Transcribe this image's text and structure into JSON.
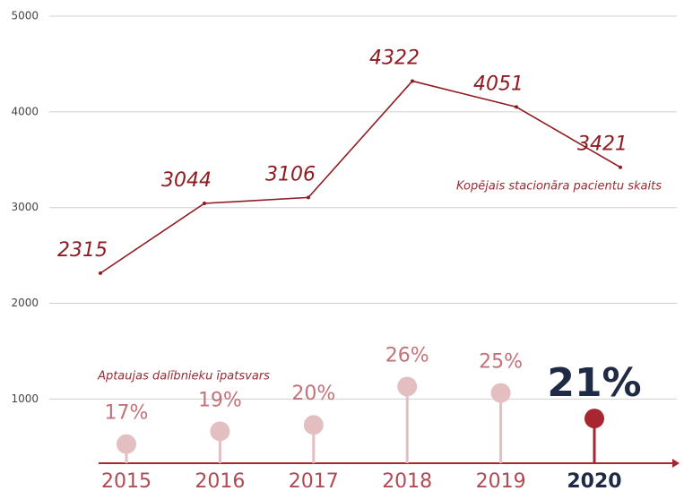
{
  "chart_data": {
    "type": "line",
    "categories": [
      "2015",
      "2016",
      "2017",
      "2018",
      "2019",
      "2020"
    ],
    "category_colors": [
      "#b04a55",
      "#b04a55",
      "#b04a55",
      "#b04a55",
      "#b04a55",
      "#1f2a44"
    ],
    "ylim": [
      330,
      5000
    ],
    "yticks": [
      1000,
      2000,
      3000,
      4000,
      5000
    ],
    "grid": true,
    "y2lim": [
      14,
      84
    ],
    "series": [
      {
        "name": "Kopējais stacionāra pacientu skaits",
        "color": "#8e1c22",
        "type": "line",
        "values": [
          2315,
          3044,
          3106,
          4322,
          4051,
          3421
        ]
      },
      {
        "name": "Aptaujas dalībnieku īpatsvars",
        "type": "lollipop",
        "axis": "y2",
        "values": [
          17,
          19,
          20,
          26,
          25,
          21
        ],
        "value_labels": [
          "17%",
          "19%",
          "20%",
          "26%",
          "25%",
          "21%"
        ],
        "colors": [
          "#e3bfc2",
          "#e3bfc2",
          "#e3bfc2",
          "#e3bfc2",
          "#e3bfc2",
          "#a8262f"
        ],
        "label_colors": [
          "#c2737a",
          "#c2737a",
          "#c2737a",
          "#c2737a",
          "#c2737a",
          "#1f2a44"
        ]
      }
    ]
  }
}
